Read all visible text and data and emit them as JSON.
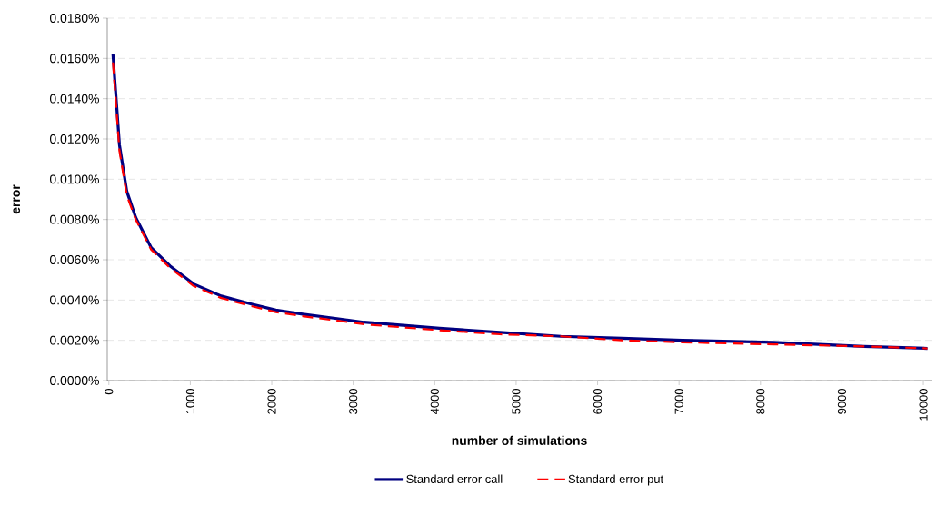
{
  "chart_data": {
    "type": "line",
    "xlabel": "number of simulations",
    "ylabel": "error",
    "x": [
      50,
      130,
      220,
      330,
      520,
      750,
      1040,
      1380,
      1750,
      2050,
      2380,
      2760,
      3130,
      4060,
      4800,
      5550,
      6300,
      7040,
      8160,
      9270,
      10050
    ],
    "series": [
      {
        "name": "Standard error call",
        "color": "#000080",
        "line_style": "solid",
        "values": [
          0.0162,
          0.0117,
          0.0094,
          0.0081,
          0.0066,
          0.0057,
          0.0048,
          0.0042,
          0.0038,
          0.0035,
          0.0033,
          0.0031,
          0.0029,
          0.0026,
          0.0024,
          0.0022,
          0.0021,
          0.002,
          0.0019,
          0.0017,
          0.0016
        ]
      },
      {
        "name": "Standard error put",
        "color": "#ff0000",
        "line_style": "dashed",
        "values": [
          0.0158,
          0.0114,
          0.0092,
          0.008,
          0.0065,
          0.0056,
          0.0047,
          0.0041,
          0.0037,
          0.0034,
          0.0032,
          0.003,
          0.0028,
          0.0025,
          0.0023,
          0.0022,
          0.002,
          0.0019,
          0.0018,
          0.0017,
          0.0016
        ]
      }
    ],
    "xlim": [
      -20,
      10100
    ],
    "ylim": [
      0,
      0.018
    ],
    "xticks": [
      0,
      1000,
      2000,
      3000,
      4000,
      5000,
      6000,
      7000,
      8000,
      9000,
      10000
    ],
    "yticks": [
      {
        "value": 0,
        "label": "0.0000%"
      },
      {
        "value": 0.002,
        "label": "0.0020%"
      },
      {
        "value": 0.004,
        "label": "0.0040%"
      },
      {
        "value": 0.006,
        "label": "0.0060%"
      },
      {
        "value": 0.008,
        "label": "0.0080%"
      },
      {
        "value": 0.01,
        "label": "0.0100%"
      },
      {
        "value": 0.012,
        "label": "0.0120%"
      },
      {
        "value": 0.014,
        "label": "0.0140%"
      },
      {
        "value": 0.016,
        "label": "0.0160%"
      },
      {
        "value": 0.018,
        "label": "0.0180%"
      }
    ],
    "grid": "y",
    "legend": "bottom",
    "marker": "none"
  }
}
